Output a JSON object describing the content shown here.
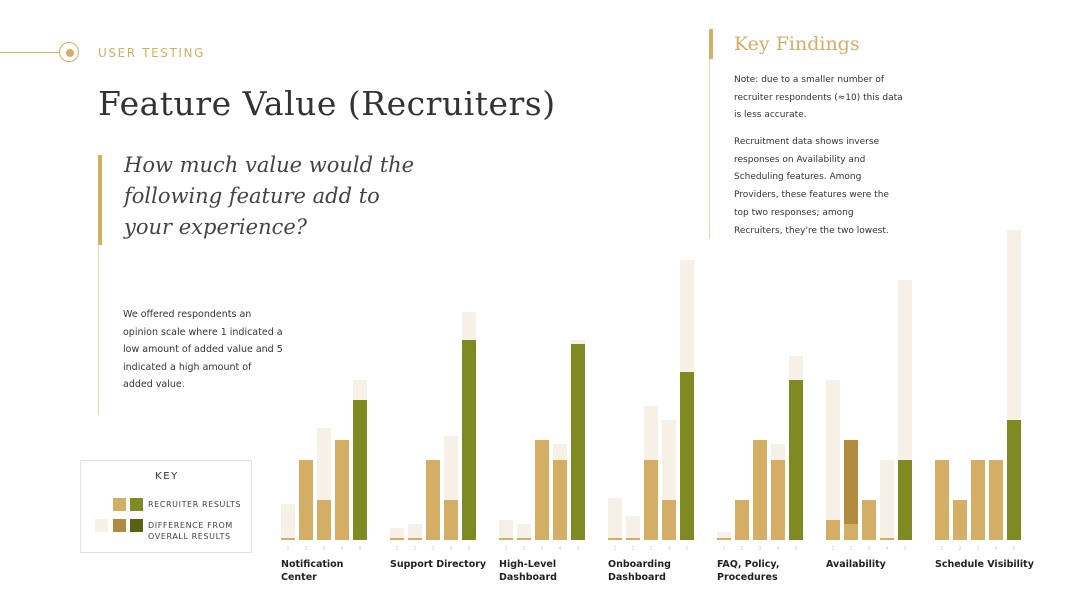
{
  "header": {
    "section_label": "USER TESTING",
    "title": "Feature Value (Recruiters)"
  },
  "question": "How much value would the following feature add to your experience?",
  "description": "We offered respondents an opinion scale where 1 indicated a low amount of added value and 5 indicated a high amount of added value.",
  "key_findings": {
    "title": "Key Findings",
    "note": "Note: due to a smaller number of recruiter respondents (≈10) this data is less accurate.",
    "body": "Recruitment data shows inverse responses on Availability and Scheduling features. Among Providers, these features were the top two responses; among Recruiters, they're the two lowest."
  },
  "legend": {
    "title": "KEY",
    "recruiter_label": "RECRUITER RESULTS",
    "difference_label_line1": "DIFFERENCE FROM",
    "difference_label_line2": "OVERALL RESULTS"
  },
  "colors": {
    "gold": "#d4ae64",
    "gold_dark": "#b38b40",
    "green": "#7f8a23",
    "green_dark": "#5a6116",
    "diff_light": "#f6f0e7",
    "accent": "#d4ae64"
  },
  "chart_data": {
    "type": "bar",
    "scale_ticks": [
      "1",
      "2",
      "3",
      "4",
      "5"
    ],
    "tick_note": "Small scale ticks 1–5 are printed faintly under each group.",
    "categories": [
      {
        "name": "Notification Center",
        "lines": [
          "Notification Center"
        ],
        "recruiter": [
          1,
          40,
          20,
          50,
          70
        ],
        "overall": [
          18,
          40,
          56,
          50,
          80
        ]
      },
      {
        "name": "Support Directory",
        "lines": [
          "Support Directory"
        ],
        "recruiter": [
          1,
          1,
          40,
          20,
          100
        ],
        "overall": [
          6,
          8,
          40,
          52,
          114
        ]
      },
      {
        "name": "High-Level Dashboard",
        "lines": [
          "High-Level",
          "Dashboard"
        ],
        "recruiter": [
          1,
          1,
          50,
          40,
          98
        ],
        "overall": [
          10,
          8,
          50,
          48,
          100
        ]
      },
      {
        "name": "Onboarding Dashboard",
        "lines": [
          "Onboarding",
          "Dashboard"
        ],
        "recruiter": [
          1,
          1,
          40,
          20,
          84
        ],
        "overall": [
          21,
          12,
          67,
          60,
          140
        ]
      },
      {
        "name": "FAQ, Policy, Procedures",
        "lines": [
          "FAQ, Policy,",
          "Procedures"
        ],
        "recruiter": [
          1,
          20,
          50,
          40,
          80
        ],
        "overall": [
          4,
          20,
          50,
          48,
          92
        ]
      },
      {
        "name": "Availability",
        "lines": [
          "Availability"
        ],
        "recruiter": [
          10,
          50,
          20,
          1,
          40
        ],
        "overall": [
          80,
          8,
          20,
          40,
          130
        ]
      },
      {
        "name": "Schedule Visibility",
        "lines": [
          "Schedule Visibility"
        ],
        "recruiter": [
          40,
          20,
          40,
          40,
          60
        ],
        "overall": [
          40,
          20,
          40,
          40,
          155
        ]
      }
    ],
    "series": [
      {
        "name": "RECRUITER RESULTS"
      },
      {
        "name": "DIFFERENCE FROM OVERALL RESULTS"
      }
    ]
  }
}
